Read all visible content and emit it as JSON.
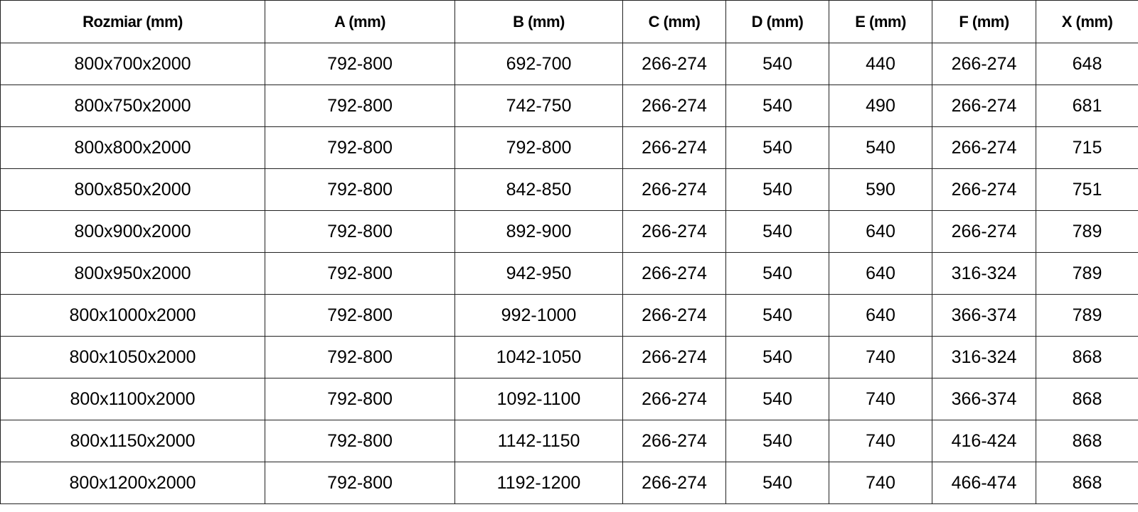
{
  "table": {
    "headers": [
      "Rozmiar (mm)",
      "A (mm)",
      "B (mm)",
      "C (mm)",
      "D (mm)",
      "E (mm)",
      "F (mm)",
      "X (mm)"
    ],
    "rows": [
      [
        "800x700x2000",
        "792-800",
        "692-700",
        "266-274",
        "540",
        "440",
        "266-274",
        "648"
      ],
      [
        "800x750x2000",
        "792-800",
        "742-750",
        "266-274",
        "540",
        "490",
        "266-274",
        "681"
      ],
      [
        "800x800x2000",
        "792-800",
        "792-800",
        "266-274",
        "540",
        "540",
        "266-274",
        "715"
      ],
      [
        "800x850x2000",
        "792-800",
        "842-850",
        "266-274",
        "540",
        "590",
        "266-274",
        "751"
      ],
      [
        "800x900x2000",
        "792-800",
        "892-900",
        "266-274",
        "540",
        "640",
        "266-274",
        "789"
      ],
      [
        "800x950x2000",
        "792-800",
        "942-950",
        "266-274",
        "540",
        "640",
        "316-324",
        "789"
      ],
      [
        "800x1000x2000",
        "792-800",
        "992-1000",
        "266-274",
        "540",
        "640",
        "366-374",
        "789"
      ],
      [
        "800x1050x2000",
        "792-800",
        "1042-1050",
        "266-274",
        "540",
        "740",
        "316-324",
        "868"
      ],
      [
        "800x1100x2000",
        "792-800",
        "1092-1100",
        "266-274",
        "540",
        "740",
        "366-374",
        "868"
      ],
      [
        "800x1150x2000",
        "792-800",
        "1142-1150",
        "266-274",
        "540",
        "740",
        "416-424",
        "868"
      ],
      [
        "800x1200x2000",
        "792-800",
        "1192-1200",
        "266-274",
        "540",
        "740",
        "466-474",
        "868"
      ]
    ]
  }
}
